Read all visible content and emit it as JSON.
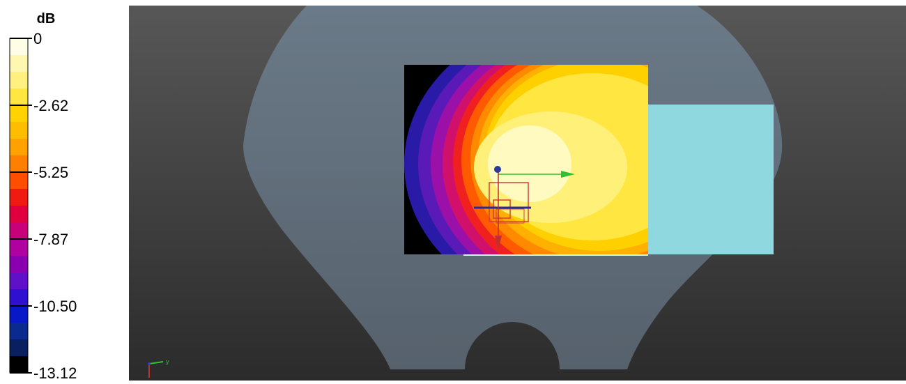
{
  "colorbar": {
    "unit": "dB",
    "ticks": [
      "0",
      "-2.62",
      "-5.25",
      "-7.87",
      "-10.50",
      "-13.12"
    ]
  },
  "axes_indicator": {
    "label": "y"
  }
}
